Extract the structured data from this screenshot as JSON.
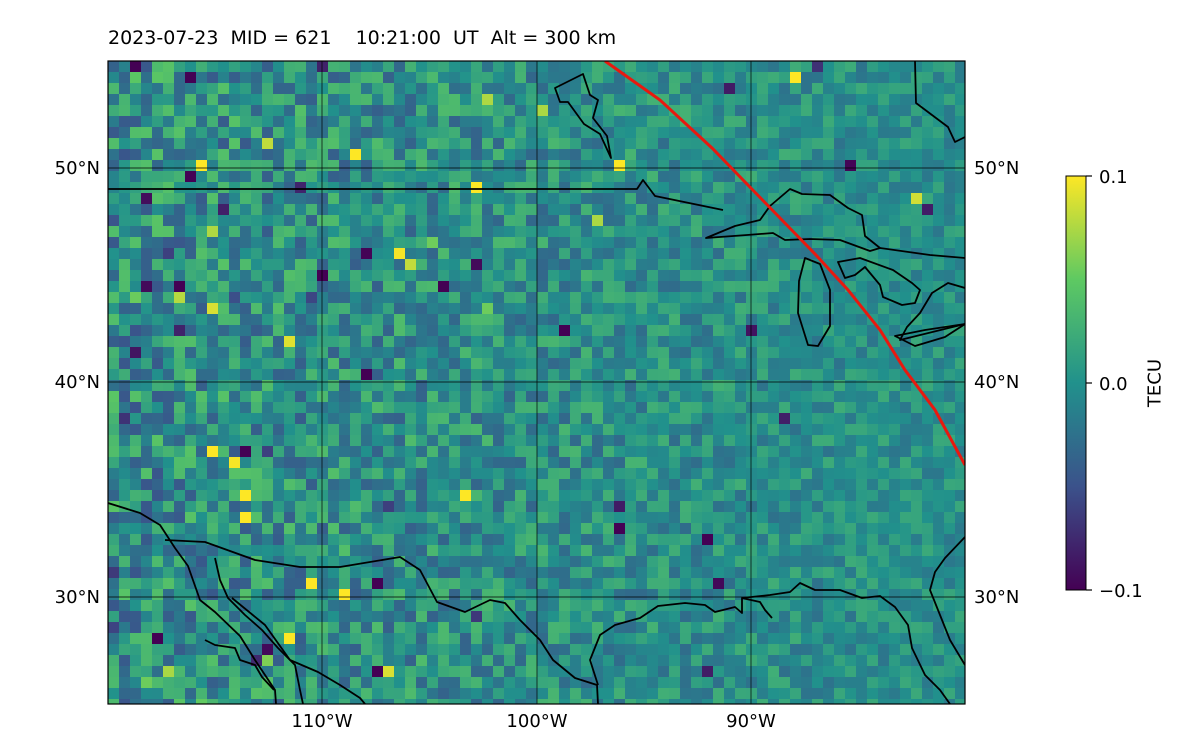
{
  "header": {
    "date": "2023-07-23",
    "mid": "MID = 621",
    "time": "10:21:00  UT",
    "alt": "Alt = 300 km"
  },
  "map": {
    "lat_ticks": [
      "50°N",
      "40°N",
      "30°N"
    ],
    "lon_ticks": [
      "110°W",
      "100°W",
      "90°W"
    ],
    "extent": {
      "lon_min": -119.8,
      "lon_max": -80.0,
      "lat_min": 25.0,
      "lat_max": 55.0
    },
    "terminator_color": "#e8190f"
  },
  "colorbar": {
    "label": "TECU",
    "ticks": [
      "0.1",
      "0.0",
      "−0.1"
    ],
    "range": [
      -0.1,
      0.1
    ],
    "colormap": "viridis",
    "colormap_stops": [
      "#440154",
      "#3b528b",
      "#21918c",
      "#5ec962",
      "#fde725"
    ]
  }
}
